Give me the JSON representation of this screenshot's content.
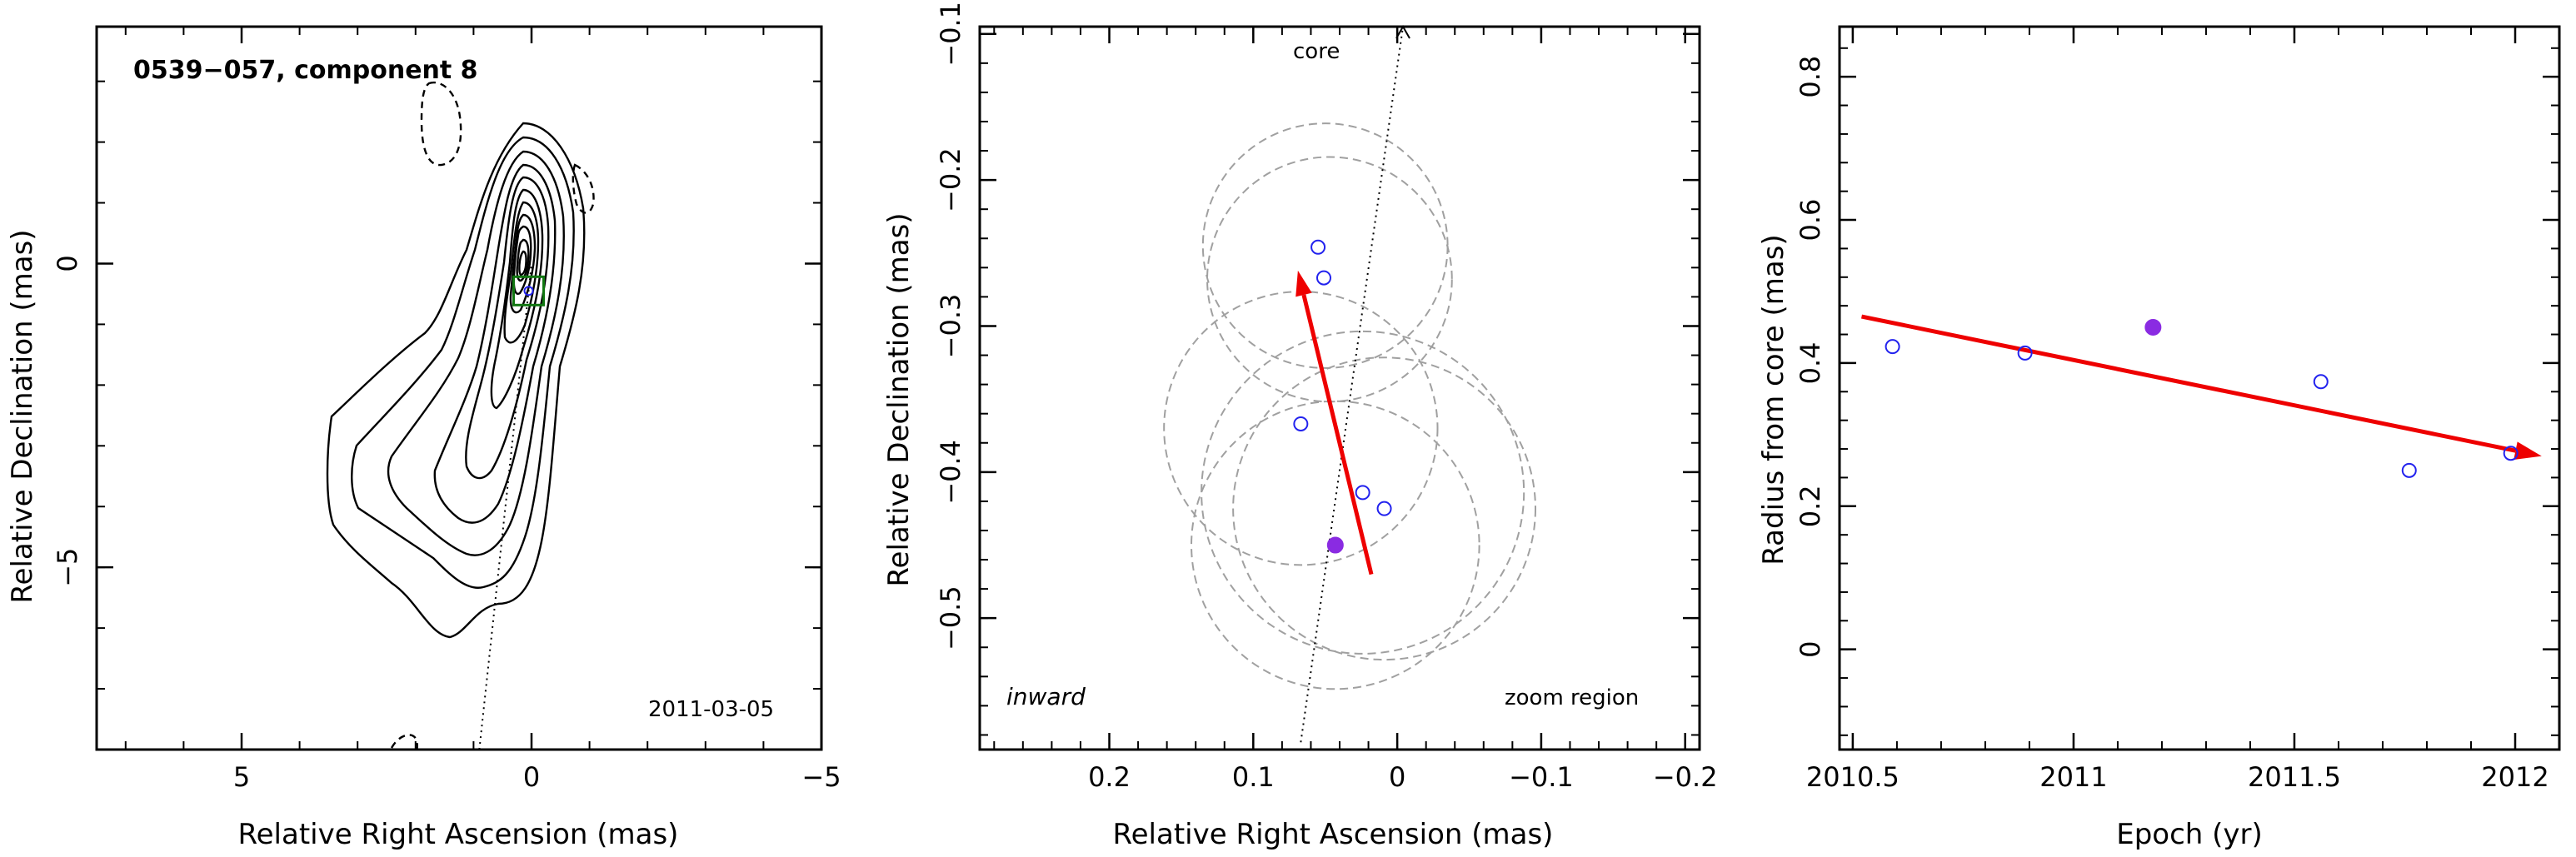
{
  "colors": {
    "axis": "#000000",
    "contour": "#000000",
    "circle": "#a0a0a0",
    "point": "#2222ee",
    "highlight": "#8a2be2",
    "arrow": "#ee0000",
    "box": "#117711"
  },
  "panels": [
    {
      "id": "map",
      "title": "0539−057, component 8",
      "date": "2011-03-05",
      "xlabel": "Relative Right Ascension (mas)",
      "ylabel": "Relative Declination (mas)",
      "xlim": [
        7.5,
        -5
      ],
      "ylim": [
        -8,
        3.9
      ],
      "xticks": [
        {
          "v": 5,
          "label": "5"
        },
        {
          "v": 0,
          "label": "0"
        },
        {
          "v": -5,
          "label": "−5"
        }
      ],
      "yticks": [
        {
          "v": 0,
          "label": "0"
        },
        {
          "v": -5,
          "label": "−5"
        }
      ],
      "core_pos": [
        0,
        0
      ],
      "component_pos": [
        0.05,
        -0.45
      ],
      "icon": "contour-map-icon"
    },
    {
      "id": "zoom",
      "xlabel": "Relative Right Ascension (mas)",
      "ylabel": "Relative Declination (mas)",
      "top_label": "core",
      "corner_label_left": "inward",
      "corner_label_right": "zoom region",
      "xlim": [
        0.29,
        -0.21
      ],
      "ylim": [
        -0.59,
        -0.095
      ],
      "xticks": [
        {
          "v": 0.2,
          "label": "0.2"
        },
        {
          "v": 0.1,
          "label": "0.1"
        },
        {
          "v": 0,
          "label": "0"
        },
        {
          "v": -0.1,
          "label": "−0.1"
        },
        {
          "v": -0.2,
          "label": "−0.2"
        }
      ],
      "yticks": [
        {
          "v": -0.1,
          "label": "−0.1"
        },
        {
          "v": -0.2,
          "label": "−0.2"
        },
        {
          "v": -0.3,
          "label": "−0.3"
        },
        {
          "v": -0.4,
          "label": "−0.4"
        },
        {
          "v": -0.5,
          "label": "−0.5"
        }
      ]
    },
    {
      "id": "radius",
      "xlabel": "Epoch (yr)",
      "ylabel": "Radius from core (mas)",
      "xlim": [
        2010.47,
        2012.1
      ],
      "ylim": [
        -0.14,
        0.87
      ],
      "xticks": [
        {
          "v": 2010.5,
          "label": "2010.5"
        },
        {
          "v": 2011,
          "label": "2011"
        },
        {
          "v": 2011.5,
          "label": "2011.5"
        },
        {
          "v": 2012,
          "label": "2012"
        }
      ],
      "yticks": [
        {
          "v": 0,
          "label": "0"
        },
        {
          "v": 0.2,
          "label": "0.2"
        },
        {
          "v": 0.4,
          "label": "0.4"
        },
        {
          "v": 0.6,
          "label": "0.6"
        },
        {
          "v": 0.8,
          "label": "0.8"
        }
      ]
    }
  ],
  "chart_data": [
    {
      "type": "scatter",
      "title": "0539−057, component 8",
      "xlabel": "Relative Right Ascension (mas)",
      "ylabel": "Relative Declination (mas)",
      "xlim": [
        7.5,
        -5
      ],
      "ylim": [
        -8,
        3.9
      ],
      "annotations": [
        "2011-03-05"
      ],
      "grid": false
    },
    {
      "type": "scatter",
      "xlabel": "Relative Right Ascension (mas)",
      "ylabel": "Relative Declination (mas)",
      "xlim": [
        0.29,
        -0.21
      ],
      "ylim": [
        -0.59,
        -0.095
      ],
      "annotations": [
        "core",
        "inward",
        "zoom region"
      ],
      "points": [
        {
          "x": 0.055,
          "y": -0.246,
          "filled": false
        },
        {
          "x": 0.051,
          "y": -0.267,
          "filled": false
        },
        {
          "x": 0.067,
          "y": -0.367,
          "filled": false
        },
        {
          "x": 0.024,
          "y": -0.414,
          "filled": false
        },
        {
          "x": 0.009,
          "y": -0.425,
          "filled": false
        },
        {
          "x": 0.043,
          "y": -0.45,
          "filled": true
        }
      ],
      "circles": [
        {
          "x": 0.05,
          "y": -0.245,
          "r": 0.085
        },
        {
          "x": 0.047,
          "y": -0.268,
          "r": 0.085
        },
        {
          "x": 0.067,
          "y": -0.37,
          "r": 0.095
        },
        {
          "x": 0.024,
          "y": -0.414,
          "r": 0.112
        },
        {
          "x": 0.009,
          "y": -0.425,
          "r": 0.105
        },
        {
          "x": 0.043,
          "y": -0.45,
          "r": 0.1
        }
      ],
      "arrow": {
        "from": [
          0.018,
          -0.47
        ],
        "to": [
          0.069,
          -0.262
        ]
      },
      "core_line": {
        "from": [
          0.067,
          -0.585
        ],
        "to": [
          -0.004,
          -0.095
        ]
      },
      "grid": false
    },
    {
      "type": "scatter",
      "xlabel": "Epoch (yr)",
      "ylabel": "Radius from core (mas)",
      "xlim": [
        2010.47,
        2012.1
      ],
      "ylim": [
        -0.14,
        0.87
      ],
      "series": [
        {
          "x": [
            2010.59,
            2010.89,
            2011.56,
            2011.76,
            2011.99
          ],
          "y": [
            0.423,
            0.414,
            0.374,
            0.25,
            0.274
          ],
          "filled": false
        },
        {
          "x": [
            2011.18
          ],
          "y": [
            0.45
          ],
          "filled": true
        }
      ],
      "fit_line": {
        "x": [
          2010.52,
          2012.06
        ],
        "y": [
          0.465,
          0.27
        ]
      },
      "grid": false
    }
  ]
}
